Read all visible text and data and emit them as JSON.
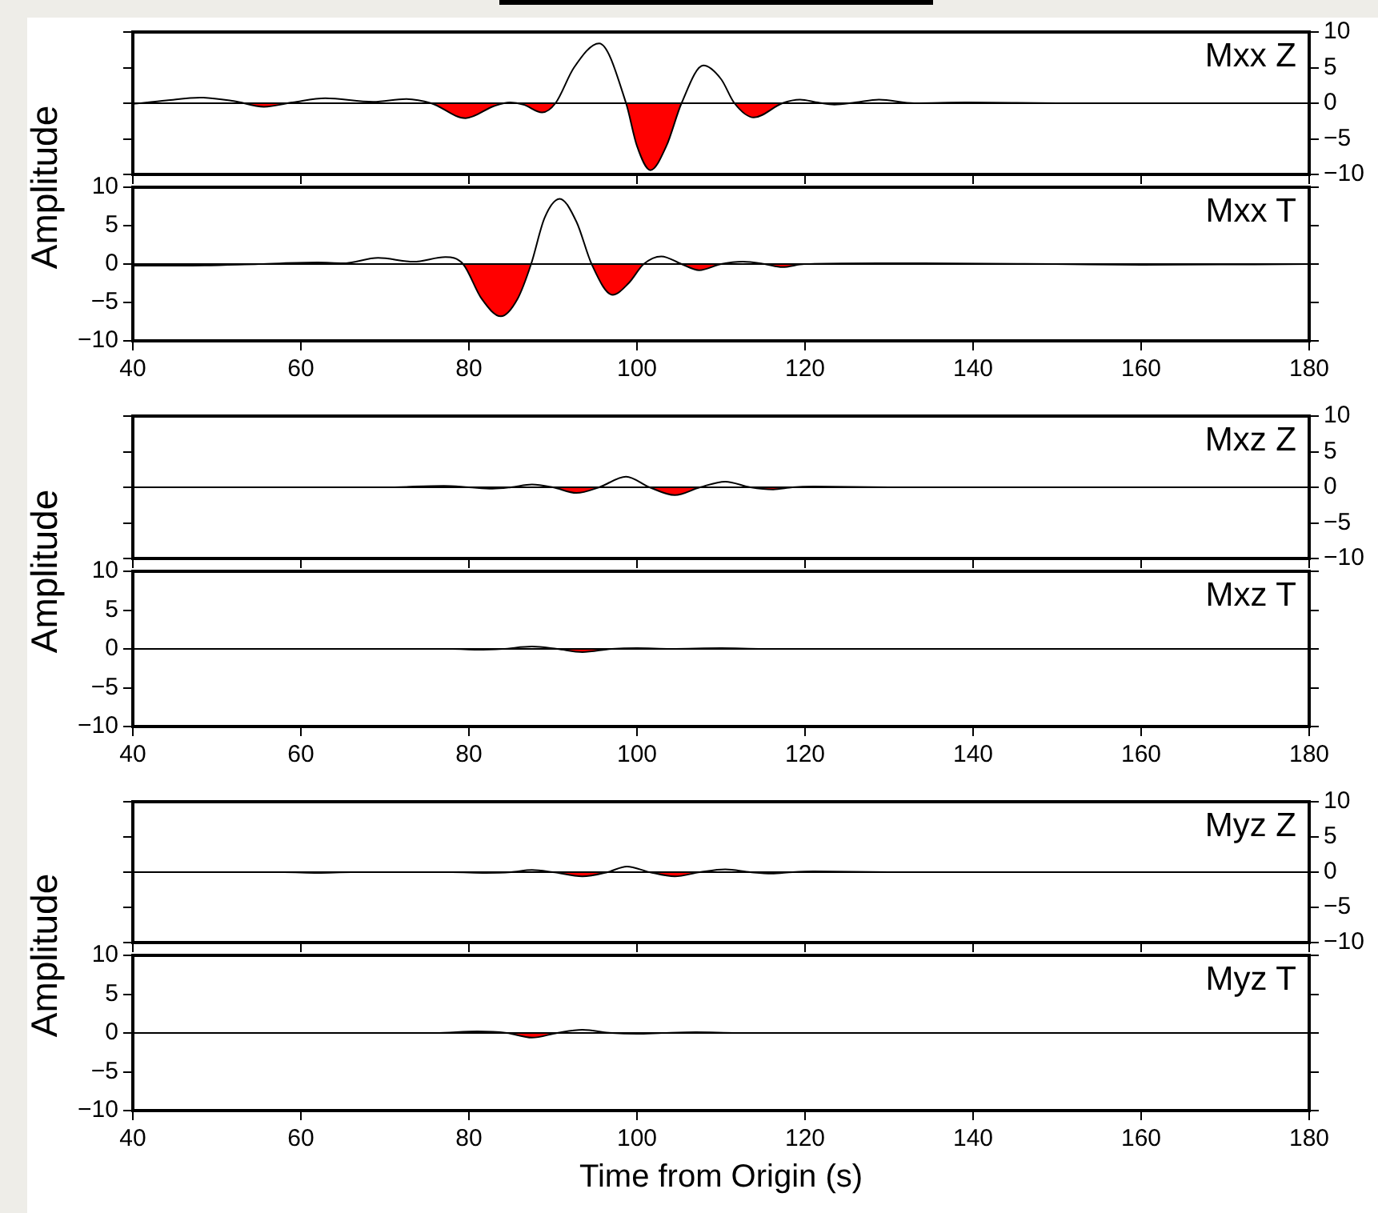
{
  "chart_data": [
    {
      "type": "area",
      "title": "Mxx Z",
      "tick_labels": "y",
      "xlim": [
        40,
        180
      ],
      "xticks": [
        40,
        60,
        80,
        100,
        120,
        140,
        160,
        180
      ],
      "y2lim": [
        -10,
        10
      ],
      "y2ticks": [
        -10,
        -5,
        0,
        5,
        10
      ],
      "ref_lines": [
        {
          "axis": "y2",
          "value": 0,
          "color": "#000000"
        }
      ],
      "series": [
        {
          "color": "#ff0000",
          "axis": "y2",
          "x": [
            40,
            44,
            48,
            52,
            55.6,
            59,
            62.9,
            68.6,
            72.5,
            75.5,
            79.6,
            83,
            84.9,
            86.5,
            88.7,
            90.3,
            92.5,
            95.5,
            98.7,
            100,
            101.6,
            103.5,
            105.3,
            107.9,
            110,
            111.6,
            113.9,
            117.3,
            119.4,
            121.5,
            123.5,
            126,
            128.8,
            133,
            139.2,
            150,
            165,
            180
          ],
          "values": [
            -0.1,
            0.4,
            0.8,
            0.3,
            -0.5,
            0.1,
            0.7,
            0.2,
            0.6,
            0,
            -2.1,
            -0.4,
            0.1,
            -0.2,
            -1.3,
            0,
            5,
            8.4,
            0,
            -6,
            -9.4,
            -6,
            0,
            5.3,
            3.4,
            0,
            -2,
            0,
            0.5,
            0.1,
            -0.2,
            0.1,
            0.5,
            0,
            0.1,
            0,
            0,
            0
          ]
        }
      ]
    },
    {
      "type": "area",
      "title": "Mxx T",
      "ylabel": "Amplitude",
      "xlim": [
        40,
        180
      ],
      "xticks": [
        40,
        60,
        80,
        100,
        120,
        140,
        160,
        180
      ],
      "ylim": [
        -10,
        10
      ],
      "yticks": [
        -10,
        -5,
        0,
        5,
        10
      ],
      "ref_lines": [
        {
          "axis": "y",
          "value": 0,
          "color": "#000000"
        }
      ],
      "series": [
        {
          "color": "#ff0000",
          "x": [
            40,
            47,
            55,
            62,
            65,
            69.2,
            73.4,
            77.2,
            79.3,
            81.5,
            83.8,
            85.8,
            87.4,
            89,
            90.8,
            92.8,
            94.6,
            97.1,
            99,
            100.8,
            102.9,
            105.3,
            107.4,
            110,
            112.6,
            115.2,
            117.3,
            119.9,
            128.8,
            134,
            149.7,
            160.1,
            180
          ],
          "values": [
            -0.2,
            -0.2,
            0,
            0.2,
            0.1,
            0.8,
            0.3,
            0.9,
            0,
            -4.5,
            -6.8,
            -4.5,
            0,
            6,
            8.5,
            5.5,
            0,
            -4,
            -2.5,
            0,
            1,
            0,
            -0.8,
            0,
            0.3,
            0,
            -0.4,
            0,
            0.1,
            0.1,
            0,
            -0.1,
            0
          ]
        }
      ]
    },
    {
      "type": "area",
      "title": "Mxz Z",
      "tick_labels": "y",
      "xlim": [
        40,
        180
      ],
      "xticks": [
        40,
        60,
        80,
        100,
        120,
        140,
        160,
        180
      ],
      "y2lim": [
        -10,
        10
      ],
      "y2ticks": [
        -10,
        -5,
        0,
        5,
        10
      ],
      "ref_lines": [
        {
          "axis": "y2",
          "value": 0,
          "color": "#000000"
        }
      ],
      "series": [
        {
          "color": "#ff0000",
          "axis": "y2",
          "x": [
            40,
            70,
            77,
            80,
            82.8,
            85,
            87.5,
            90,
            92.8,
            95.5,
            98.7,
            101.5,
            104.5,
            107.5,
            110.5,
            113.5,
            116.2,
            118.5,
            121,
            130,
            180
          ],
          "values": [
            0,
            0,
            0.2,
            0,
            -0.2,
            0,
            0.4,
            0,
            -0.8,
            0,
            1.5,
            0,
            -1.1,
            0,
            0.8,
            0,
            -0.3,
            0,
            0.1,
            0,
            0
          ]
        }
      ]
    },
    {
      "type": "area",
      "title": "Mxz T",
      "ylabel": "Amplitude",
      "xlim": [
        40,
        180
      ],
      "xticks": [
        40,
        60,
        80,
        100,
        120,
        140,
        160,
        180
      ],
      "ylim": [
        -10,
        10
      ],
      "yticks": [
        -10,
        -5,
        0,
        5,
        10
      ],
      "ref_lines": [
        {
          "axis": "y",
          "value": 0,
          "color": "#000000"
        }
      ],
      "series": [
        {
          "color": "#ff0000",
          "x": [
            40,
            78,
            81,
            84,
            87.5,
            90.5,
            93.5,
            97,
            100,
            104,
            110,
            115,
            180
          ],
          "values": [
            0,
            0,
            -0.1,
            0,
            0.3,
            0,
            -0.4,
            0,
            0.1,
            0,
            0.1,
            0,
            0
          ]
        }
      ]
    },
    {
      "type": "area",
      "title": "Myz Z",
      "tick_labels": "y",
      "xlim": [
        40,
        180
      ],
      "xticks": [
        40,
        60,
        80,
        100,
        120,
        140,
        160,
        180
      ],
      "y2lim": [
        -10,
        10
      ],
      "y2ticks": [
        -10,
        -5,
        0,
        5,
        10
      ],
      "ref_lines": [
        {
          "axis": "y2",
          "value": 0,
          "color": "#000000"
        }
      ],
      "series": [
        {
          "color": "#ff0000",
          "axis": "y2",
          "x": [
            40,
            58,
            62,
            66,
            78,
            82,
            85,
            87.5,
            90,
            93.5,
            96.5,
            98.8,
            101.5,
            104.5,
            107.5,
            110.5,
            113.5,
            116,
            118.5,
            121,
            130,
            180
          ],
          "values": [
            0,
            0,
            -0.1,
            0,
            0,
            -0.1,
            0,
            0.3,
            0,
            -0.6,
            0,
            0.8,
            0,
            -0.6,
            0,
            0.4,
            0,
            -0.2,
            0,
            0.1,
            0,
            0
          ]
        }
      ]
    },
    {
      "type": "area",
      "title": "Myz T",
      "ylabel": "Amplitude",
      "xlabel": "Time from Origin (s)",
      "xlim": [
        40,
        180
      ],
      "xticks": [
        40,
        60,
        80,
        100,
        120,
        140,
        160,
        180
      ],
      "ylim": [
        -10,
        10
      ],
      "yticks": [
        -10,
        -5,
        0,
        5,
        10
      ],
      "ref_lines": [
        {
          "axis": "y",
          "value": 0,
          "color": "#000000"
        }
      ],
      "series": [
        {
          "color": "#ff0000",
          "x": [
            40,
            76,
            81,
            84.5,
            87.5,
            90.5,
            93.5,
            97,
            100,
            103,
            107,
            112,
            180
          ],
          "values": [
            0,
            0,
            0.2,
            0,
            -0.6,
            0,
            0.4,
            0,
            -0.1,
            0,
            0.1,
            0,
            0
          ]
        }
      ]
    }
  ]
}
